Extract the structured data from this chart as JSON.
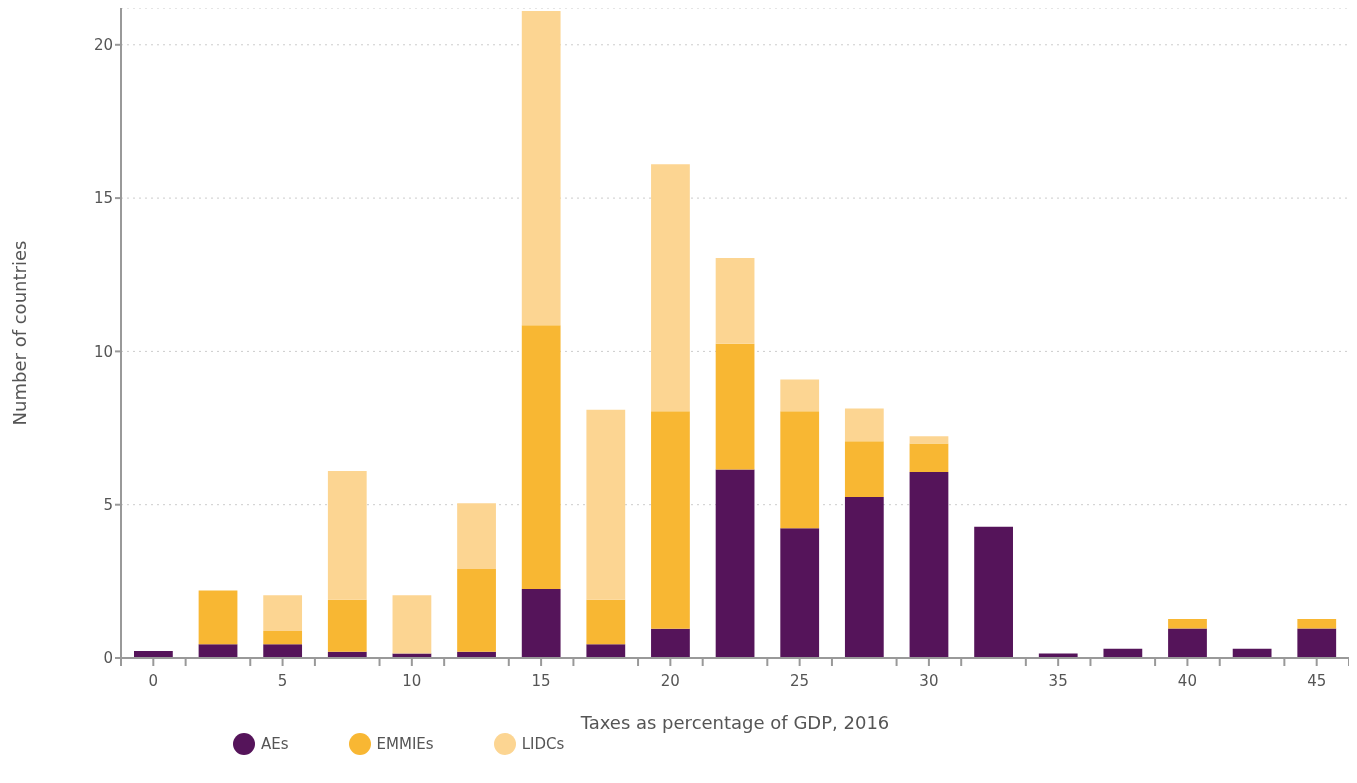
{
  "chart_data": {
    "type": "bar",
    "stacked": true,
    "xlabel": "Taxes as percentage of GDP, 2016",
    "ylabel": "Number of countries",
    "x": [
      0,
      2.5,
      5,
      7.5,
      10,
      12.5,
      15,
      17.5,
      20,
      22.5,
      25,
      27.5,
      30,
      32.5,
      35,
      37.5,
      40,
      42.5,
      45
    ],
    "xlim": [
      -1.25,
      46.25
    ],
    "xticks": [
      {
        "value": -1.25,
        "label": null
      },
      0,
      {
        "value": 1.25,
        "label": null
      },
      {
        "value": 3.75,
        "label": null
      },
      5,
      {
        "value": 6.25,
        "label": null
      },
      {
        "value": 8.75,
        "label": null
      },
      10,
      {
        "value": 11.25,
        "label": null
      },
      {
        "value": 13.75,
        "label": null
      },
      15,
      {
        "value": 16.25,
        "label": null
      },
      {
        "value": 18.75,
        "label": null
      },
      20,
      {
        "value": 21.25,
        "label": null
      },
      {
        "value": 23.75,
        "label": null
      },
      25,
      {
        "value": 26.25,
        "label": null
      },
      {
        "value": 28.75,
        "label": null
      },
      30,
      {
        "value": 31.25,
        "label": null
      },
      {
        "value": 33.75,
        "label": null
      },
      35,
      {
        "value": 36.25,
        "label": null
      },
      {
        "value": 38.75,
        "label": null
      },
      40,
      {
        "value": 41.25,
        "label": null
      },
      {
        "value": 43.75,
        "label": null
      },
      45,
      {
        "value": 46.25,
        "label": null
      }
    ],
    "ylim": [
      0,
      21.2
    ],
    "yticks": [
      0,
      5,
      10,
      15,
      20
    ],
    "grid": "y",
    "legend": "bottom left",
    "series": [
      {
        "name": "AEs",
        "color": "#55145a",
        "values": [
          0.23,
          0.45,
          0.45,
          0.2,
          0.15,
          0.2,
          2.25,
          0.45,
          0.95,
          6.15,
          4.23,
          5.25,
          6.07,
          4.28,
          0.15,
          0.3,
          0.96,
          0.3,
          0.96
        ]
      },
      {
        "name": "EMMIEs",
        "color": "#f8b733",
        "values": [
          0,
          1.75,
          0.43,
          1.7,
          0,
          2.7,
          8.6,
          1.45,
          7.1,
          4.1,
          3.82,
          1.82,
          0.93,
          0,
          0,
          0,
          0.31,
          0,
          0.31
        ]
      },
      {
        "name": "LIDCs",
        "color": "#fcd592",
        "values": [
          0,
          0,
          1.17,
          4.2,
          1.9,
          2.15,
          10.25,
          6.2,
          8.05,
          2.8,
          1.03,
          1.07,
          0.23,
          0,
          0,
          0,
          0,
          0,
          0
        ]
      }
    ]
  }
}
